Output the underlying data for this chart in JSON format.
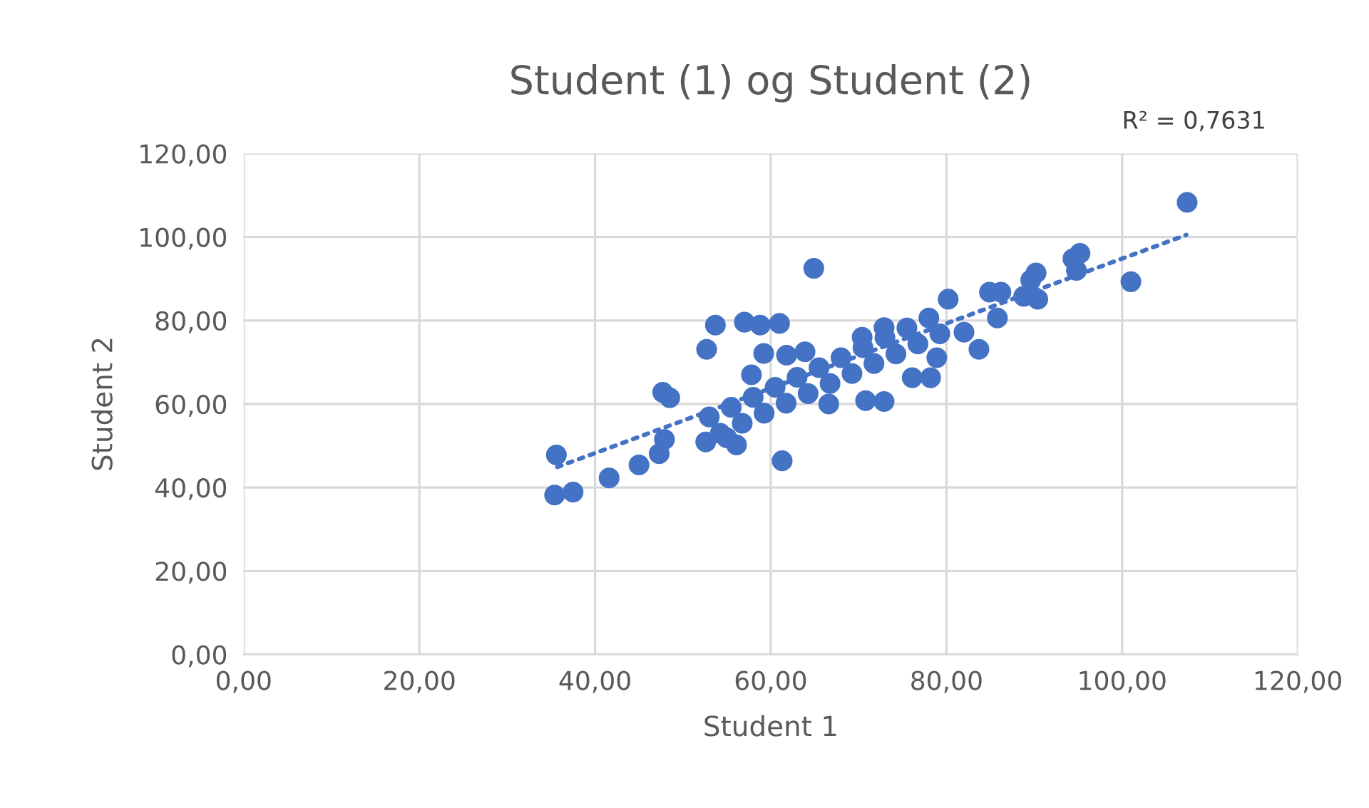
{
  "chart_data": {
    "type": "scatter",
    "title": "Student (1) og Student (2)",
    "xlabel": "Student 1",
    "ylabel": "Student 2",
    "annotations": [
      "R² = 0,7631"
    ],
    "xlim": [
      0,
      120
    ],
    "ylim": [
      0,
      120
    ],
    "xticks": [
      {
        "value": 0,
        "label": "0,00"
      },
      {
        "value": 20,
        "label": "20,00"
      },
      {
        "value": 40,
        "label": "40,00"
      },
      {
        "value": 60,
        "label": "60,00"
      },
      {
        "value": 80,
        "label": "80,00"
      },
      {
        "value": 100,
        "label": "100,00"
      },
      {
        "value": 120,
        "label": "120,00"
      }
    ],
    "yticks": [
      {
        "value": 0,
        "label": "0,00"
      },
      {
        "value": 20,
        "label": "20,00"
      },
      {
        "value": 40,
        "label": "40,00"
      },
      {
        "value": 60,
        "label": "60,00"
      },
      {
        "value": 80,
        "label": "80,00"
      },
      {
        "value": 100,
        "label": "100,00"
      },
      {
        "value": 120,
        "label": "120,00"
      }
    ],
    "grid": true,
    "marker": "circle",
    "series": [
      {
        "color": "#4472c4",
        "x": [
          35.4,
          35.6,
          37.5,
          41.6,
          45.0,
          47.3,
          47.9,
          47.7,
          48.5,
          52.6,
          55.0,
          56.1,
          52.7,
          53.7,
          57.0,
          58.8,
          61.0,
          59.2,
          61.8,
          57.8,
          61.3,
          64.9,
          70.8,
          76.1,
          83.7,
          78.9,
          107.4,
          101.0,
          95.2,
          94.4,
          94.8,
          90.2,
          89.6,
          90.4,
          88.8,
          85.8,
          80.2,
          84.9,
          86.2,
          78.2,
          72.9,
          66.6,
          63.9,
          82.0,
          72.9,
          70.4,
          53,
          55.5,
          58,
          60.5,
          63,
          65.5,
          68,
          70.5,
          73,
          75.5,
          78,
          54.25,
          56.75,
          59.25,
          61.75,
          64.25,
          66.75,
          69.25,
          71.75,
          74.25,
          76.75,
          79.25
        ],
        "values": [
          38.2,
          47.8,
          38.9,
          42.3,
          45.4,
          48.1,
          51.5,
          62.8,
          61.5,
          50.9,
          51.9,
          50.2,
          73.1,
          78.9,
          79.6,
          78.9,
          79.3,
          72.1,
          71.7,
          67.0,
          46.4,
          92.5,
          60.8,
          66.3,
          73.1,
          71.1,
          108.3,
          89.3,
          96.1,
          94.8,
          92.0,
          91.4,
          89.7,
          85.1,
          85.8,
          80.6,
          85.1,
          86.8,
          86.8,
          66.3,
          60.6,
          60.0,
          72.5,
          77.2,
          78.3,
          76.0,
          56.9,
          59.2,
          61.6,
          64.0,
          66.4,
          68.7,
          71.1,
          73.5,
          75.9,
          78.2,
          80.6,
          53.0,
          55.4,
          57.8,
          60.2,
          62.5,
          64.9,
          67.3,
          69.7,
          72.0,
          74.4,
          76.8
        ]
      },
      {
        "type": "line",
        "color": "#4472c4",
        "line_style": "dotted",
        "marker": "none",
        "x": [
          35.7,
          107.3
        ],
        "values": [
          44.9,
          100.5
        ]
      }
    ]
  }
}
